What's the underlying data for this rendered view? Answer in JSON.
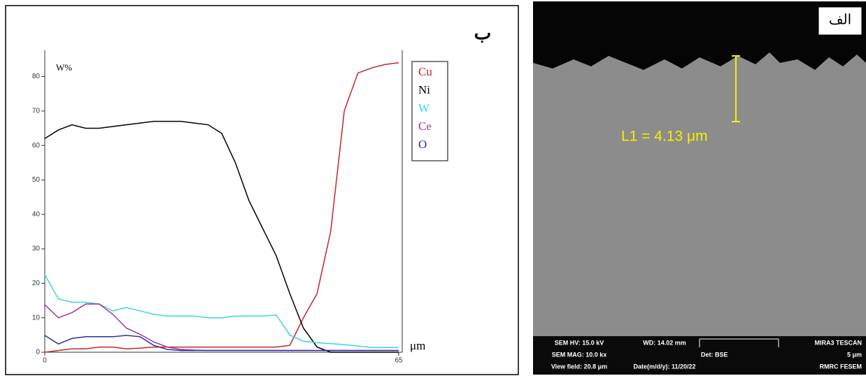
{
  "chart_data": {
    "type": "line",
    "panel_label": "ب",
    "y_label": "W%",
    "x_label": "μm",
    "x": [
      0,
      2.5,
      5,
      7.5,
      10,
      12.5,
      15,
      17.5,
      20,
      22.5,
      25,
      27.5,
      30,
      32.5,
      35,
      37.5,
      40,
      42.5,
      45,
      47.5,
      50,
      52.5,
      55,
      57.5,
      60,
      62.5,
      65
    ],
    "series": [
      {
        "name": "Cu",
        "color": "#c0282d",
        "values": [
          0,
          0.5,
          1,
          1,
          1.5,
          1.5,
          1,
          1.2,
          1.5,
          1.5,
          1.5,
          1.5,
          1.5,
          1.5,
          1.5,
          1.5,
          1.5,
          1.5,
          2,
          10,
          17,
          35,
          70,
          81,
          82.5,
          83.5,
          84
        ]
      },
      {
        "name": "Ni",
        "color": "#000000",
        "values": [
          62,
          64.5,
          66,
          65,
          65,
          65.5,
          66,
          66.5,
          67,
          67,
          67,
          66.5,
          66,
          63.5,
          55,
          44,
          36,
          28,
          17,
          7,
          1.5,
          0,
          0,
          0,
          0,
          0,
          0
        ]
      },
      {
        "name": "W",
        "color": "#3fd3d8",
        "values": [
          22.5,
          15.5,
          14.5,
          14.5,
          14,
          12,
          13,
          12,
          11,
          10.5,
          10.5,
          10.5,
          10,
          10,
          10.5,
          10.5,
          10.5,
          10.8,
          5,
          3.2,
          2.8,
          2.5,
          2.2,
          1.8,
          1.4,
          1.4,
          1.4
        ]
      },
      {
        "name": "Ce",
        "color": "#a033a0",
        "values": [
          13.8,
          10,
          11.5,
          14,
          14,
          11,
          7,
          5.2,
          3,
          1.5,
          0.8,
          0.6,
          0.5,
          0.5,
          0.5,
          0.5,
          0.5,
          0.5,
          0.5,
          0.5,
          0.5,
          0.5,
          0.5,
          0.5,
          0.5,
          0.5,
          0.5
        ]
      },
      {
        "name": "O",
        "color": "#2b2ba0",
        "values": [
          4.9,
          2.4,
          4,
          4.5,
          4.5,
          4.5,
          4.9,
          4.5,
          2,
          0.8,
          0.5,
          0.5,
          0.5,
          0.5,
          0.5,
          0.5,
          0.5,
          0.5,
          0.5,
          0.5,
          0.5,
          0.5,
          0.5,
          0.5,
          0.5,
          0.5,
          0.5
        ]
      }
    ],
    "xlim": [
      0,
      65
    ],
    "xticks": [
      0,
      65
    ],
    "ylim": [
      0,
      87
    ],
    "yticks": [
      0,
      10,
      20,
      30,
      40,
      50,
      60,
      70,
      80
    ]
  },
  "image_panel": {
    "panel_label": "الف",
    "measurement": "L1 = 4.13 μm",
    "info_bar": [
      [
        "SEM HV: 15.0 kV",
        "WD: 14.02 mm",
        "MIRA3 TESCAN"
      ],
      [
        "SEM MAG: 10.0 kx",
        "Det: BSE",
        "5 μm"
      ],
      [
        "View field: 20.8 μm",
        "Date(m/d/y): 11/20/22",
        "RMRC  FESEM"
      ]
    ]
  }
}
